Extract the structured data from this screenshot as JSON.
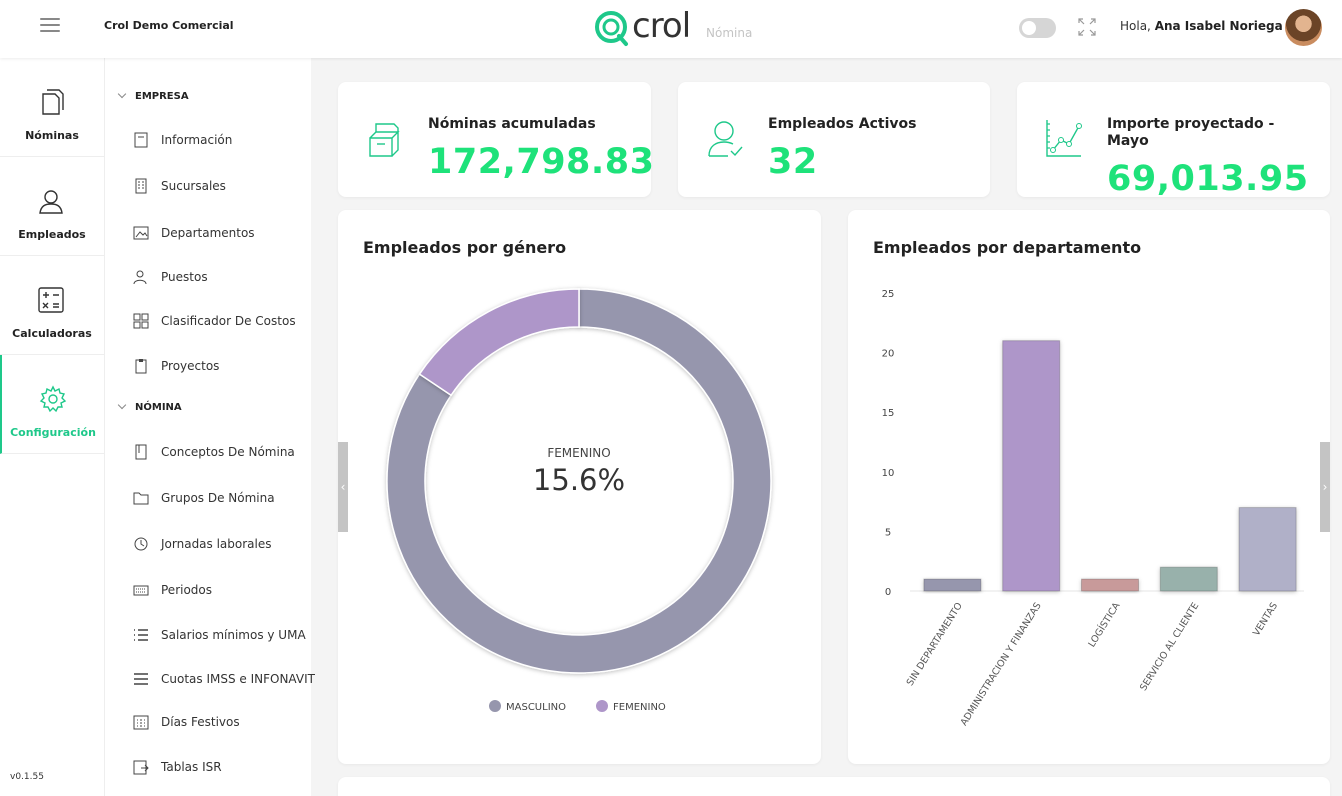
{
  "header": {
    "company": "Crol Demo Comercial",
    "logo_text": "crol",
    "logo_sub": "Nómina",
    "greeting_prefix": "Hola,",
    "user_name": "Ana Isabel Noriega"
  },
  "rail": {
    "items": [
      {
        "label": "Nóminas",
        "icon": "document-icon"
      },
      {
        "label": "Empleados",
        "icon": "user-icon"
      },
      {
        "label": "Calculadoras",
        "icon": "calculator-icon"
      },
      {
        "label": "Configuración",
        "icon": "gear-icon"
      }
    ],
    "version": "v0.1.55"
  },
  "submenu": {
    "empresa_label": "EMPRESA",
    "nomina_label": "NÓMINA",
    "empresa_items": [
      {
        "label": "Información",
        "icon": "info-doc-icon"
      },
      {
        "label": "Sucursales",
        "icon": "building-icon"
      },
      {
        "label": "Departamentos",
        "icon": "image-frame-icon"
      },
      {
        "label": "Puestos",
        "icon": "people-icon"
      },
      {
        "label": "Clasificador De Costos",
        "icon": "grid-icon"
      },
      {
        "label": "Proyectos",
        "icon": "clipboard-icon"
      }
    ],
    "nomina_items": [
      {
        "label": "Conceptos De Nómina",
        "icon": "book-icon"
      },
      {
        "label": "Grupos De Nómina",
        "icon": "folder-icon"
      },
      {
        "label": "Jornadas laborales",
        "icon": "clock-icon"
      },
      {
        "label": "Periodos",
        "icon": "keyboard-icon"
      },
      {
        "label": "Salarios mínimos y UMA",
        "icon": "list-icon"
      },
      {
        "label": "Cuotas IMSS e INFONAVIT",
        "icon": "menu-lines-icon"
      },
      {
        "label": "Días Festivos",
        "icon": "calendar-icon"
      },
      {
        "label": "Tablas ISR",
        "icon": "table-export-icon"
      }
    ]
  },
  "kpis": [
    {
      "title": "Nóminas acumuladas",
      "value": "172,798.83"
    },
    {
      "title": "Empleados Activos",
      "value": "32"
    },
    {
      "title": "Importe proyectado - Mayo",
      "value": "69,013.95"
    }
  ],
  "colors": {
    "accent": "#1ec88a",
    "kpi_value": "#1ee27a",
    "masculino": "#9696ad",
    "femenino": "#ae96c9"
  },
  "chart_data": [
    {
      "type": "pie",
      "title": "Empleados por género",
      "center_label": "FEMENINO",
      "center_value": "15.6%",
      "categories": [
        "MASCULINO",
        "FEMENINO"
      ],
      "values": [
        84.4,
        15.6
      ],
      "colors": [
        "#9696ad",
        "#ae96c9"
      ],
      "legend": "bottom"
    },
    {
      "type": "bar",
      "title": "Empleados por departamento",
      "categories": [
        "SIN DEPARTAMENTO",
        "ADMINISTRACION Y FINANZAS",
        "LOGÍSTICA",
        "SERVICIO AL CLIENTE",
        "VENTAS"
      ],
      "values": [
        1,
        21,
        1,
        2,
        7
      ],
      "colors": [
        "#9696ad",
        "#ae96c9",
        "#c89a9a",
        "#98b1ab",
        "#b0b0c8"
      ],
      "ylim": [
        0,
        25
      ],
      "yticks": [
        0,
        5,
        10,
        15,
        20,
        25
      ],
      "grid": false
    }
  ]
}
